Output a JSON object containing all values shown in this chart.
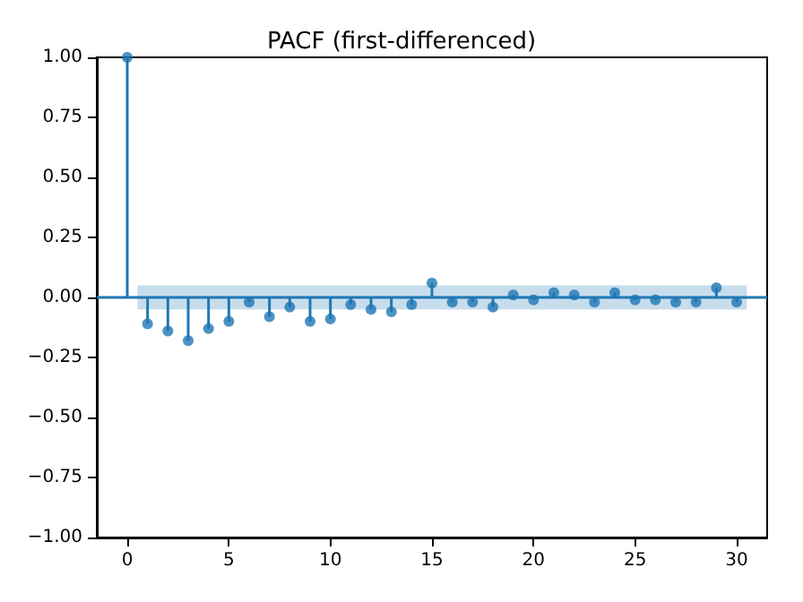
{
  "chart_data": {
    "type": "lollipop",
    "title": "PACF (first-differenced)",
    "x": [
      0,
      1,
      2,
      3,
      4,
      5,
      6,
      7,
      8,
      9,
      10,
      11,
      12,
      13,
      14,
      15,
      16,
      17,
      18,
      19,
      20,
      21,
      22,
      23,
      24,
      25,
      26,
      27,
      28,
      29,
      30
    ],
    "values": [
      1.0,
      -0.11,
      -0.14,
      -0.18,
      -0.13,
      -0.1,
      -0.02,
      -0.08,
      -0.04,
      -0.1,
      -0.09,
      -0.03,
      -0.05,
      -0.06,
      -0.03,
      0.06,
      -0.02,
      -0.02,
      -0.04,
      0.01,
      -0.01,
      0.02,
      0.01,
      -0.02,
      0.02,
      -0.01,
      -0.01,
      -0.02,
      -0.02,
      0.04,
      -0.02
    ],
    "color": "#1f77b4",
    "marker": "circle",
    "xlim": [
      -1.5,
      31.5
    ],
    "xticks": [
      0,
      5,
      10,
      15,
      20,
      25,
      30
    ],
    "ylim": [
      -1,
      1
    ],
    "yticks": [
      {
        "value": -1,
        "label": "−1.00"
      },
      {
        "value": -0.75,
        "label": "−0.75"
      },
      {
        "value": -0.5,
        "label": "−0.50"
      },
      {
        "value": -0.25,
        "label": "−0.25"
      },
      {
        "value": 0,
        "label": "0.00"
      },
      {
        "value": 0.25,
        "label": "0.25"
      },
      {
        "value": 0.5,
        "label": "0.50"
      },
      {
        "value": 0.75,
        "label": "0.75"
      },
      {
        "value": 1,
        "label": "1.00"
      }
    ],
    "ref_lines": [
      {
        "axis": "y",
        "value": 0,
        "color": "#1f77b4"
      }
    ],
    "bands": [
      {
        "axis": "y",
        "from": -0.05,
        "to": 0.05,
        "color": "#1f77b4"
      }
    ],
    "tick_labels": true
  }
}
